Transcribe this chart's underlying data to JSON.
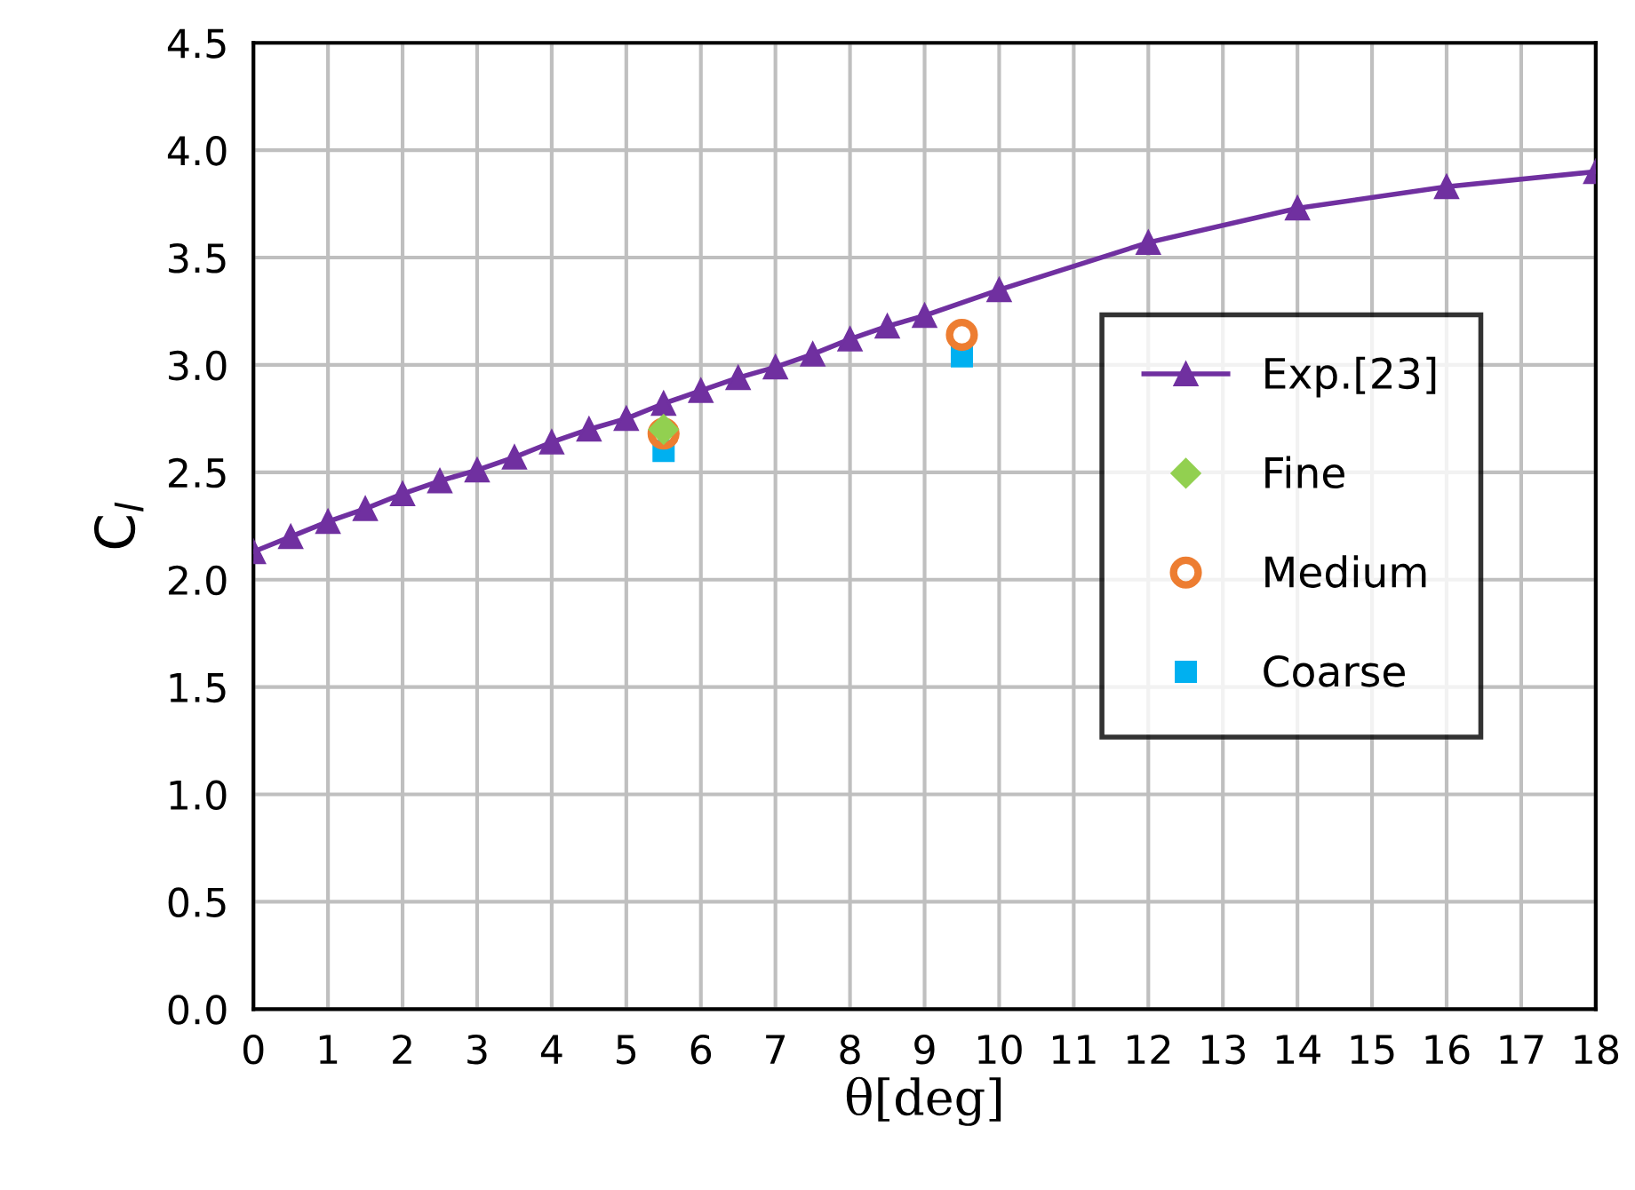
{
  "chart_data": {
    "type": "line",
    "xlabel": "θ[deg]",
    "ylabel": "C$_{l}$",
    "xlim": [
      0,
      18
    ],
    "xticks": [
      0,
      1,
      2,
      3,
      4,
      5,
      6,
      7,
      8,
      9,
      10,
      11,
      12,
      13,
      14,
      15,
      16,
      17,
      18
    ],
    "ylim": [
      0,
      4.5
    ],
    "yticks": [
      {
        "value": 0,
        "label": "0.0"
      },
      0.5,
      {
        "value": 1,
        "label": "1.0"
      },
      1.5,
      {
        "value": 2,
        "label": "2.0"
      },
      2.5,
      {
        "value": 3,
        "label": "3.0"
      },
      3.5,
      {
        "value": 4,
        "label": "4.0"
      },
      4.5
    ],
    "grid": true,
    "legend": "right",
    "series": [
      {
        "name": "Exp.[23]",
        "color": "#7030a0",
        "marker": "triangle",
        "line_style": "solid",
        "x": [
          0,
          0.5,
          1,
          1.5,
          2,
          2.5,
          3,
          3.5,
          4,
          4.5,
          5,
          5.5,
          6,
          6.5,
          7,
          7.5,
          8,
          8.5,
          9,
          10,
          12,
          14,
          16,
          18
        ],
        "values": [
          2.13,
          2.2,
          2.27,
          2.33,
          2.4,
          2.46,
          2.51,
          2.57,
          2.64,
          2.7,
          2.75,
          2.82,
          2.88,
          2.94,
          2.99,
          3.05,
          3.12,
          3.18,
          3.23,
          3.35,
          3.57,
          3.73,
          3.83,
          3.9
        ]
      },
      {
        "name": "Fine",
        "type": "scatter",
        "color": "#92d050",
        "marker": "diamond",
        "x": [
          5.5
        ],
        "values": [
          2.7
        ]
      },
      {
        "name": "Medium",
        "type": "scatter",
        "color": "#ed7d31",
        "marker": "circle",
        "x": [
          5.5,
          9.5
        ],
        "values": [
          2.68,
          3.14
        ]
      },
      {
        "name": "Coarse",
        "type": "scatter",
        "color": "#00b0f0",
        "marker": "square",
        "x": [
          5.5,
          9.5
        ],
        "values": [
          2.6,
          3.04
        ]
      }
    ]
  }
}
